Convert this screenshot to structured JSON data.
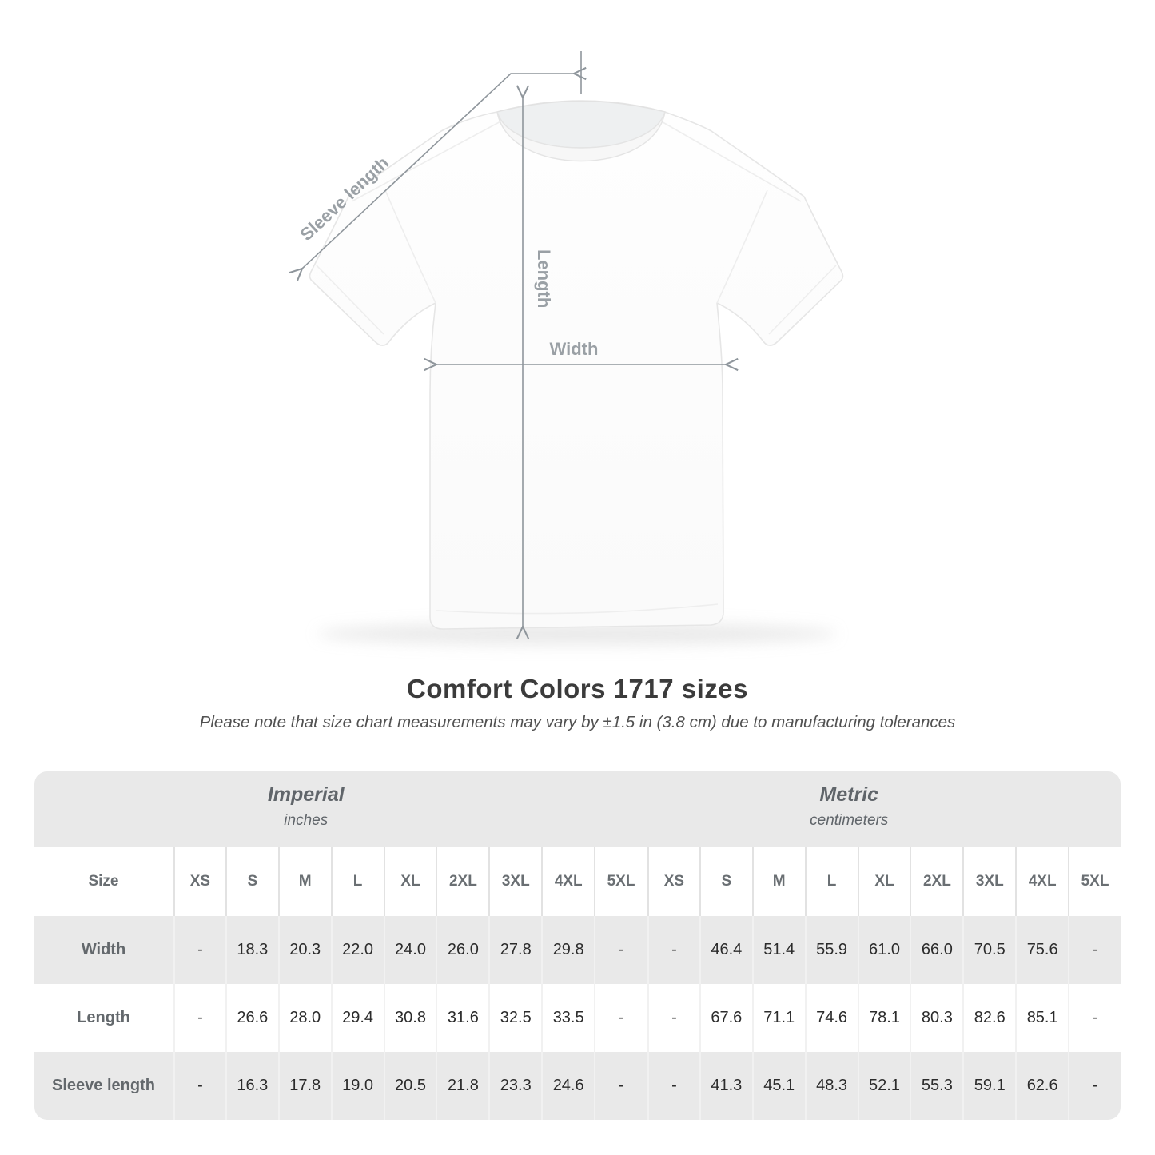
{
  "page": {
    "title": "Comfort Colors 1717 sizes",
    "subtitle": "Please note that size chart measurements may vary by ±1.5 in (3.8 cm) due to manufacturing tolerances"
  },
  "diagram": {
    "labels": {
      "sleeve_length": "Sleeve length",
      "length": "Length",
      "width": "Width"
    },
    "annotation_color": "#8f969c",
    "label_color": "#9aa0a5"
  },
  "table": {
    "group_headers": [
      {
        "label": "Imperial",
        "unit": "inches"
      },
      {
        "label": "Metric",
        "unit": "centimeters"
      }
    ],
    "corner_label": "Size",
    "sizes": [
      "XS",
      "S",
      "M",
      "L",
      "XL",
      "2XL",
      "3XL",
      "4XL",
      "5XL"
    ],
    "rows": [
      {
        "label": "Width",
        "imperial": [
          "-",
          "18.3",
          "20.3",
          "22.0",
          "24.0",
          "26.0",
          "27.8",
          "29.8",
          "-"
        ],
        "metric": [
          "-",
          "46.4",
          "51.4",
          "55.9",
          "61.0",
          "66.0",
          "70.5",
          "75.6",
          "-"
        ]
      },
      {
        "label": "Length",
        "imperial": [
          "-",
          "26.6",
          "28.0",
          "29.4",
          "30.8",
          "31.6",
          "32.5",
          "33.5",
          "-"
        ],
        "metric": [
          "-",
          "67.6",
          "71.1",
          "74.6",
          "78.1",
          "80.3",
          "82.6",
          "85.1",
          "-"
        ]
      },
      {
        "label": "Sleeve length",
        "imperial": [
          "-",
          "16.3",
          "17.8",
          "19.0",
          "20.5",
          "21.8",
          "23.3",
          "24.6",
          "-"
        ],
        "metric": [
          "-",
          "41.3",
          "45.1",
          "48.3",
          "52.1",
          "55.3",
          "59.1",
          "62.6",
          "-"
        ]
      }
    ],
    "colors": {
      "band_gray": "#e9e9e9",
      "header_text": "#6a6f73",
      "value_text": "#2c2c2c"
    }
  }
}
